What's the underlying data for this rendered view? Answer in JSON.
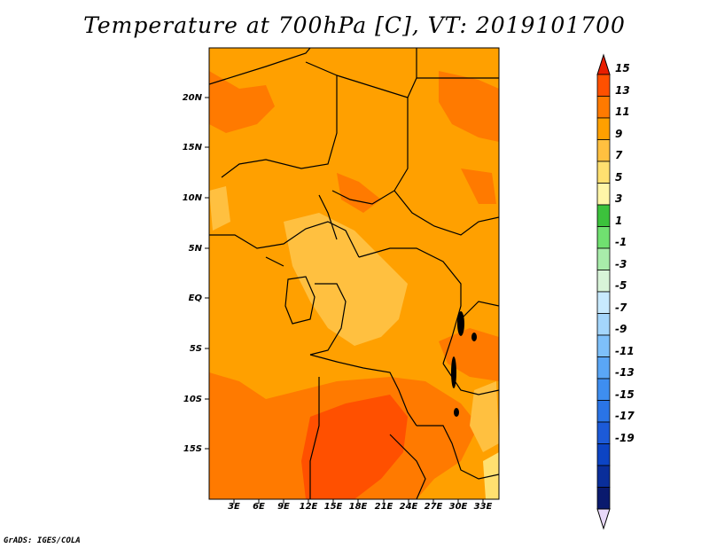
{
  "title": "Temperature at 700hPa [C], VT: 2019101700",
  "credit": "GrADS: IGES/COLA",
  "map": {
    "lat_labels": [
      "20N",
      "15N",
      "10N",
      "5N",
      "EQ",
      "5S",
      "10S",
      "15S"
    ],
    "lon_labels": [
      "3E",
      "6E",
      "9E",
      "12E",
      "15E",
      "18E",
      "21E",
      "24E",
      "27E",
      "30E",
      "33E"
    ]
  },
  "colorbar": {
    "labels": [
      "15",
      "13",
      "11",
      "9",
      "7",
      "5",
      "3",
      "1",
      "-1",
      "-3",
      "-5",
      "-7",
      "-9",
      "-11",
      "-13",
      "-15",
      "-17",
      "-19"
    ],
    "colors": [
      "#e8d8f8",
      "#0a1a6e",
      "#0a2e9a",
      "#0c44c4",
      "#1c5ad8",
      "#2a74e6",
      "#3e8ef0",
      "#5aa6f6",
      "#7ec0fa",
      "#a4d6fc",
      "#c8eafe",
      "#d8f4d8",
      "#a8ecaa",
      "#70e070",
      "#3cc23c",
      "#fff6a8",
      "#ffe070",
      "#ffc040",
      "#ffa000",
      "#ff7a00",
      "#ff5000",
      "#e81e00"
    ]
  }
}
